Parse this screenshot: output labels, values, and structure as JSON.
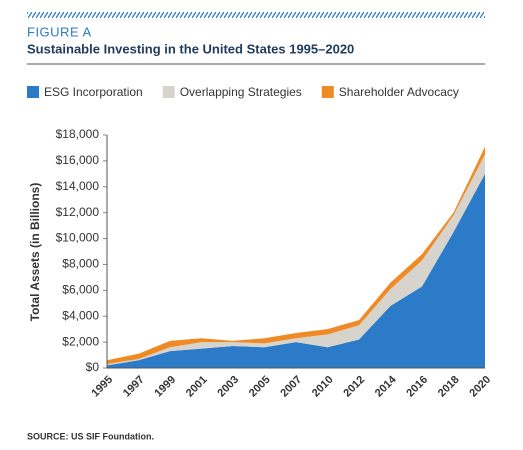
{
  "chart_data": {
    "type": "stacked_area",
    "figure_label": "FIGURE A",
    "title": "Sustainable Investing in the United States 1995–2020",
    "y_label": "Total Assets (in Billions)",
    "source": "SOURCE: US SIF Foundation.",
    "categories": [
      "1995",
      "1997",
      "1999",
      "2001",
      "2003",
      "2005",
      "2007",
      "2010",
      "2012",
      "2014",
      "2016",
      "2018",
      "2020"
    ],
    "series": [
      {
        "name": "ESG Incorporation",
        "color": "#2b7bc8",
        "values": [
          200,
          600,
          1300,
          1500,
          1700,
          1600,
          2000,
          1600,
          2200,
          4800,
          6300,
          10500,
          15000
        ]
      },
      {
        "name": "Overlapping Strategies",
        "color": "#d6d4cc",
        "values": [
          100,
          100,
          300,
          500,
          300,
          300,
          300,
          1000,
          1100,
          1300,
          2000,
          1300,
          1500
        ]
      },
      {
        "name": "Shareholder Advocacy",
        "color": "#f08a24",
        "values": [
          300,
          400,
          500,
          300,
          100,
          400,
          400,
          400,
          400,
          500,
          500,
          200,
          600
        ]
      }
    ],
    "ylim": [
      0,
      18000
    ],
    "yticks": [
      {
        "value": 0,
        "label": "$0"
      },
      {
        "value": 2000,
        "label": "$2,000"
      },
      {
        "value": 4000,
        "label": "$4,000"
      },
      {
        "value": 6000,
        "label": "$6,000"
      },
      {
        "value": 8000,
        "label": "$8,000"
      },
      {
        "value": 10000,
        "label": "$10,000"
      },
      {
        "value": 12000,
        "label": "$12,000"
      },
      {
        "value": 14000,
        "label": "$14,000"
      },
      {
        "value": 16000,
        "label": "$16,000"
      },
      {
        "value": 18000,
        "label": "$18,000"
      }
    ],
    "legend": "top-left"
  }
}
